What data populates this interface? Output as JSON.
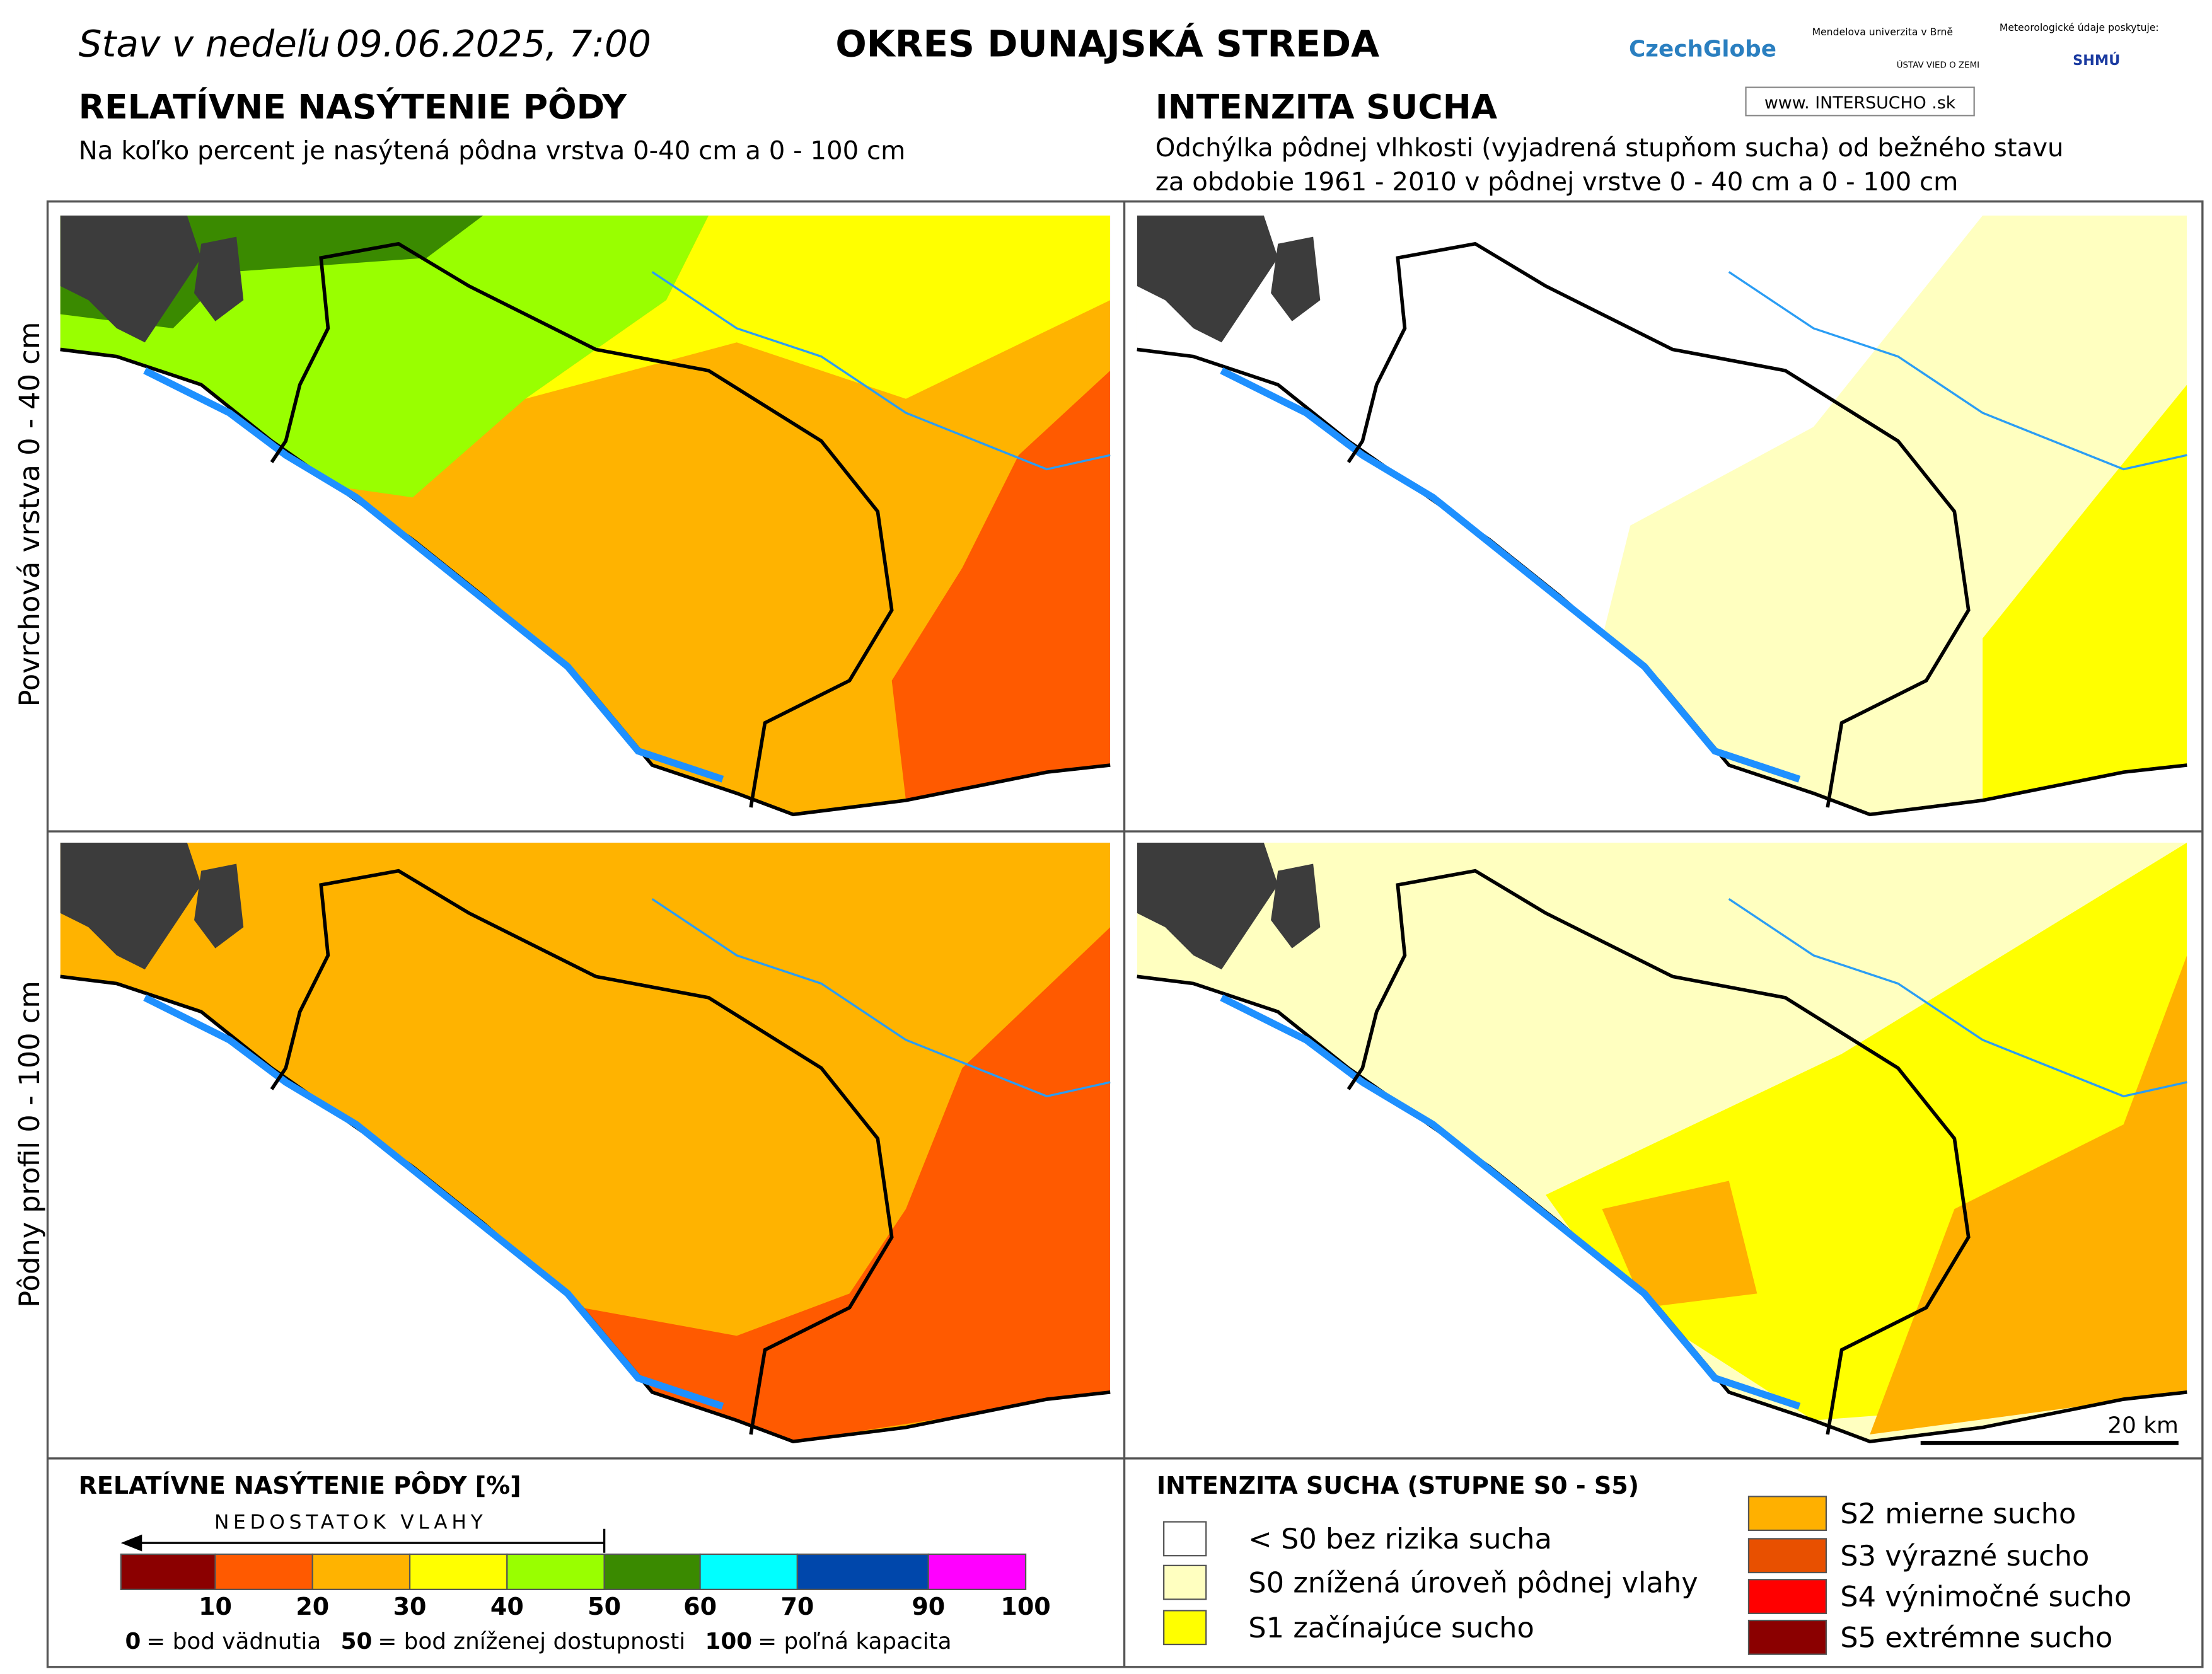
{
  "header": {
    "date_prefix": "Stav v nedeľu",
    "date": "09.06.2025, 7:00",
    "district": "OKRES  DUNAJSKÁ STREDA",
    "logos": [
      "CzechGlobe",
      "Mendelova univerzita v Brně",
      "ÚSTAV VIED O ZEMI",
      "Meteorologické údaje poskytuje:",
      "SHMÚ",
      "www. INTERSUCHO .sk"
    ]
  },
  "left": {
    "title": "RELATÍVNE NASÝTENIE PÔDY",
    "subtitle": "Na koľko percent je nasýtená pôdna vrstva 0-40 cm a 0 - 100 cm"
  },
  "right": {
    "title": "INTENZITA SUCHA",
    "subtitle_lines": [
      "Odchýlka pôdnej vlhkosti (vyjadrená stupňom sucha) od bežného stavu",
      "za obdobie 1961 - 2010 v pôdnej vrstve 0 - 40 cm a 0 - 100 cm"
    ]
  },
  "rows": [
    "Povrchová vrstva 0 - 40 cm",
    "Pôdny profil 0 - 100 cm"
  ],
  "scale_bar": "20 km",
  "legend_left": {
    "title": "RELATÍVNE NASÝTENIE PÔDY [%]",
    "arrow": "NEDOSTATOK VLAHY",
    "colors": [
      "#8b0000",
      "#ff5a00",
      "#ffb300",
      "#ffff00",
      "#99ff00",
      "#3a8a00",
      "#00ffff",
      "#0047ab",
      "#ff00ff"
    ],
    "ticks": [
      "10",
      "20",
      "30",
      "40",
      "50",
      "60",
      "70",
      "90",
      "100"
    ],
    "notes": [
      {
        "key": "0",
        "text": "= bod vädnutia"
      },
      {
        "key": "50",
        "text": "= bod zníženej dostupnosti"
      },
      {
        "key": "100",
        "text": "= poľná kapacita"
      }
    ]
  },
  "legend_right": {
    "title": "INTENZITA SUCHA (STUPNE S0 - S5)",
    "items": [
      {
        "label": "< S0 bez rizika sucha",
        "color": "#ffffff"
      },
      {
        "label": "S0 znížená úroveň pôdnej vlahy",
        "color": "#ffffc0"
      },
      {
        "label": "S1 začínajúce sucho",
        "color": "#ffff00"
      },
      {
        "label": "S2 mierne sucho",
        "color": "#ffb000"
      },
      {
        "label": "S3 výrazné sucho",
        "color": "#e85000"
      },
      {
        "label": "S4 výnimočné sucho",
        "color": "#ff0000"
      },
      {
        "label": "S5 extrémne sucho",
        "color": "#8b0000"
      }
    ]
  }
}
